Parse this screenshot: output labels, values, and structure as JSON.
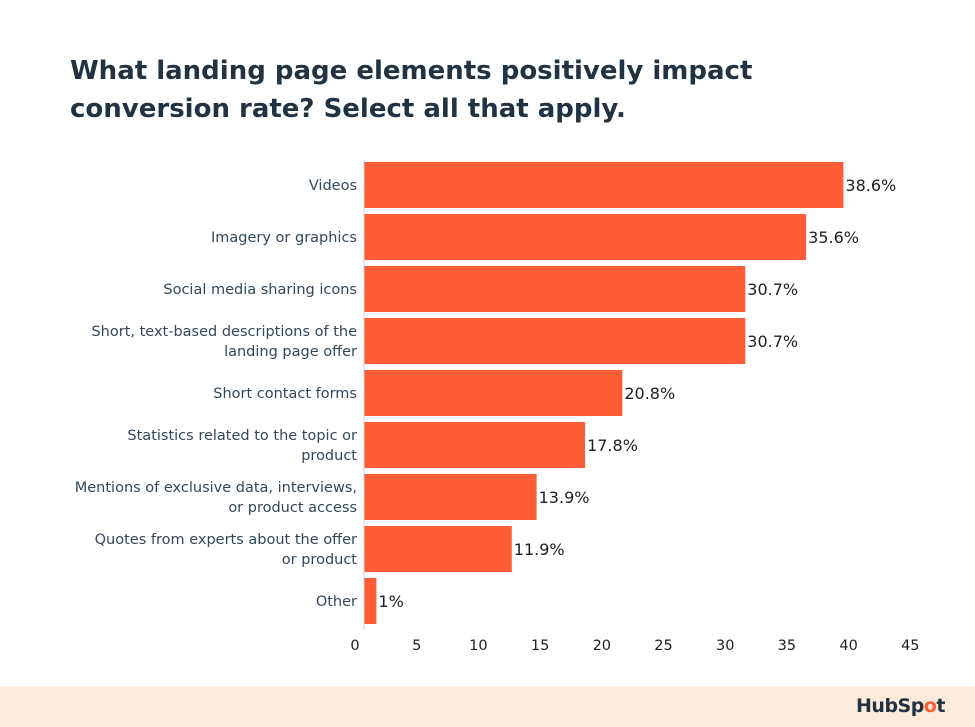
{
  "chart_data": {
    "type": "bar",
    "orientation": "horizontal",
    "title": "What landing page elements positively impact conversion rate? Select all that apply.",
    "categories": [
      [
        "Videos"
      ],
      [
        "Imagery or graphics"
      ],
      [
        "Social media sharing icons"
      ],
      [
        "Short, text-based descriptions of the",
        "landing page offer"
      ],
      [
        "Short contact forms"
      ],
      [
        "Statistics related to the topic or",
        "product"
      ],
      [
        "Mentions of exclusive data, interviews,",
        "or product access"
      ],
      [
        "Quotes from experts about the offer",
        "or product"
      ],
      [
        "Other"
      ]
    ],
    "values": [
      38.6,
      35.6,
      30.7,
      30.7,
      20.8,
      17.8,
      13.9,
      11.9,
      1
    ],
    "data_labels": [
      "38.6%",
      "35.6%",
      "30.7%",
      "30.7%",
      "20.8%",
      "17.8%",
      "13.9%",
      "11.9%",
      "1%"
    ],
    "xlim": [
      0,
      45
    ],
    "xticks": [
      0,
      5,
      10,
      15,
      20,
      25,
      30,
      35,
      40,
      45
    ],
    "grid": false,
    "bar_color": "#ff5c35"
  },
  "footer": {
    "logo": "HubSpot",
    "background": "#fceadb"
  }
}
